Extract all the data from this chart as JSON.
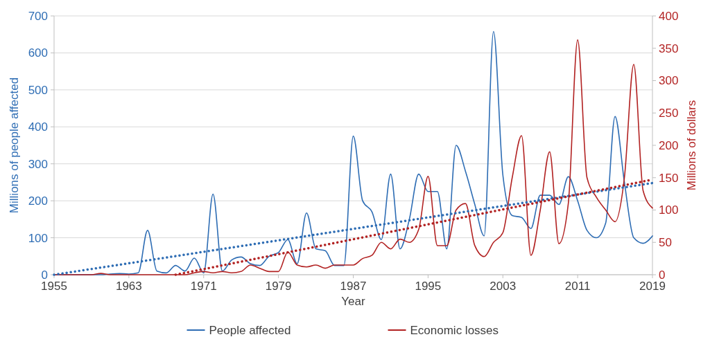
{
  "chart_data": {
    "type": "line",
    "xlabel": "Year",
    "ylabel": "Millions of people affected",
    "y2label": "Millions of dollars",
    "x": [
      1955,
      1956,
      1957,
      1958,
      1959,
      1960,
      1961,
      1962,
      1963,
      1964,
      1965,
      1966,
      1967,
      1968,
      1969,
      1970,
      1971,
      1972,
      1973,
      1974,
      1975,
      1976,
      1977,
      1978,
      1979,
      1980,
      1981,
      1982,
      1983,
      1984,
      1985,
      1986,
      1987,
      1988,
      1989,
      1990,
      1991,
      1992,
      1993,
      1994,
      1995,
      1996,
      1997,
      1998,
      1999,
      2000,
      2001,
      2002,
      2003,
      2004,
      2005,
      2006,
      2007,
      2008,
      2009,
      2010,
      2011,
      2012,
      2013,
      2014,
      2015,
      2016,
      2017,
      2018,
      2019
    ],
    "series": [
      {
        "name": "People affected",
        "color": "#2e6db4",
        "values": [
          0,
          0,
          0,
          0,
          0,
          0,
          2,
          3,
          2,
          5,
          120,
          10,
          5,
          25,
          10,
          45,
          5,
          218,
          10,
          40,
          48,
          30,
          25,
          50,
          60,
          95,
          30,
          167,
          70,
          65,
          25,
          25,
          375,
          200,
          170,
          95,
          272,
          70,
          150,
          272,
          225,
          225,
          70,
          350,
          280,
          190,
          105,
          658,
          270,
          160,
          155,
          125,
          215,
          215,
          190,
          265,
          200,
          120,
          100,
          140,
          428,
          250,
          100,
          85,
          105
        ]
      },
      {
        "name": "Economic losses",
        "color": "#b22222",
        "axis": "y2",
        "values": [
          0,
          0,
          0,
          0,
          0,
          2,
          0,
          0,
          0,
          0,
          0,
          0,
          0,
          0,
          0,
          3,
          5,
          3,
          5,
          3,
          5,
          15,
          10,
          5,
          5,
          35,
          15,
          12,
          15,
          10,
          15,
          15,
          15,
          25,
          30,
          50,
          40,
          55,
          50,
          70,
          152,
          45,
          45,
          100,
          110,
          45,
          28,
          50,
          65,
          150,
          215,
          30,
          100,
          190,
          48,
          110,
          363,
          150,
          120,
          100,
          82,
          150,
          325,
          130,
          103
        ]
      },
      {
        "color": "#2e6db4",
        "line_style": "dotted",
        "x": [
          1955,
          2019
        ],
        "values": [
          0,
          248
        ]
      },
      {
        "color": "#b22222",
        "line_style": "dotted",
        "axis": "y2",
        "x": [
          1968,
          2019
        ],
        "values": [
          0,
          147
        ]
      }
    ],
    "xlim": [
      1955,
      2019
    ],
    "xticks": [
      1955,
      1963,
      1971,
      1979,
      1987,
      1995,
      2003,
      2011,
      2019
    ],
    "ylim": [
      0,
      700
    ],
    "yticks": [
      0,
      100,
      200,
      300,
      400,
      500,
      600,
      700
    ],
    "y2lim": [
      0,
      400
    ],
    "y2ticks": [
      0,
      50,
      100,
      150,
      200,
      250,
      300,
      350,
      400
    ],
    "grid": "y",
    "legend": "bottom"
  }
}
